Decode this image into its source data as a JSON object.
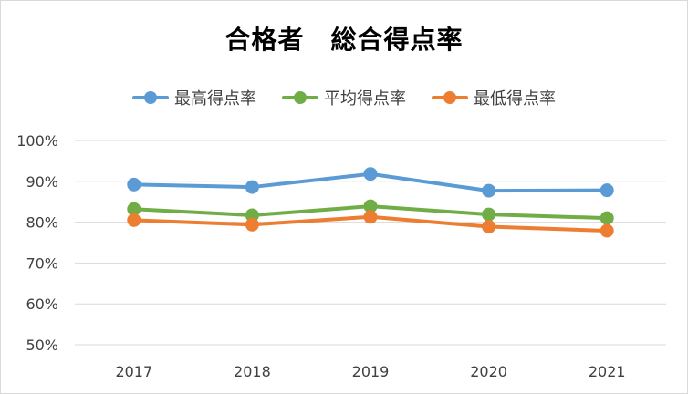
{
  "chart_data": {
    "type": "line",
    "title": "合格者　総合得点率",
    "categories": [
      "2017",
      "2018",
      "2019",
      "2020",
      "2021"
    ],
    "yticks": [
      "50%",
      "60%",
      "70%",
      "80%",
      "90%",
      "100%"
    ],
    "ylim": [
      50,
      100
    ],
    "grid": true,
    "legend_position": "top",
    "series": [
      {
        "name": "最高得点率",
        "color": "#5b9bd5",
        "values": [
          89.2,
          88.6,
          91.8,
          87.7,
          87.8
        ]
      },
      {
        "name": "平均得点率",
        "color": "#70ad47",
        "values": [
          83.2,
          81.7,
          83.9,
          81.9,
          81.0
        ]
      },
      {
        "name": "最低得点率",
        "color": "#ed7d31",
        "values": [
          80.5,
          79.4,
          81.3,
          78.9,
          77.9
        ]
      }
    ]
  }
}
